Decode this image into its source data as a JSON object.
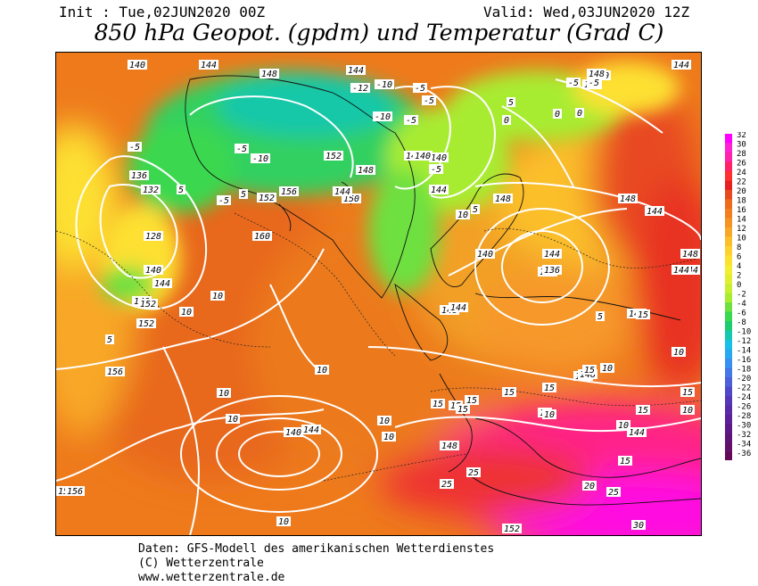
{
  "header": {
    "init": "Init : Tue,02JUN2020 00Z",
    "valid": "Valid: Wed,03JUN2020 12Z",
    "title": "850 hPa Geopot. (gpdm) und Temperatur (Grad C)"
  },
  "legend": {
    "labels": [
      "32",
      "30",
      "28",
      "26",
      "24",
      "22",
      "20",
      "18",
      "16",
      "14",
      "12",
      "10",
      "8",
      "6",
      "4",
      "2",
      "0",
      "-2",
      "-4",
      "-6",
      "-8",
      "-10",
      "-12",
      "-14",
      "-16",
      "-18",
      "-20",
      "-22",
      "-24",
      "-26",
      "-28",
      "-30",
      "-32",
      "-34",
      "-36"
    ],
    "colors": [
      "#ff00ff",
      "#ff22d0",
      "#ff22aa",
      "#ff2266",
      "#ff3030",
      "#e82020",
      "#e84a20",
      "#ee6a1c",
      "#f27e1e",
      "#f59422",
      "#f8a826",
      "#fbbf2a",
      "#fdd22e",
      "#fde030",
      "#f5ee30",
      "#e0f030",
      "#c8f030",
      "#a8ec30",
      "#6ee040",
      "#3ad850",
      "#1ecc70",
      "#16c8b0",
      "#18c0e8",
      "#28a8f0",
      "#3890f0",
      "#4478e8",
      "#4c60d8",
      "#5048c8",
      "#5438b8",
      "#5a2aa8",
      "#5c2098",
      "#5e1888",
      "#601478",
      "#621068",
      "#640858"
    ]
  },
  "map_labels": {
    "geopotential": [
      "140",
      "144",
      "148",
      "144",
      "152",
      "140",
      "144",
      "148",
      "136",
      "132",
      "128",
      "140",
      "144",
      "148",
      "152",
      "156",
      "160",
      "156",
      "152",
      "150",
      "144",
      "148",
      "152",
      "144",
      "140",
      "136",
      "136",
      "140",
      "144",
      "148",
      "144",
      "144",
      "144",
      "140",
      "144",
      "148",
      "144",
      "148",
      "152",
      "156",
      "148",
      "144",
      "148",
      "144",
      "148",
      "152",
      "148",
      "156",
      "144",
      "140",
      "144"
    ],
    "temperature": [
      "-10",
      "-12",
      "-10",
      "-5",
      "-5",
      "-10",
      "-5",
      "-5",
      "-5",
      "-5",
      "-5",
      "0",
      "0",
      "5",
      "5",
      "5",
      "10",
      "10",
      "10",
      "10",
      "10",
      "10",
      "10",
      "10",
      "5",
      "5",
      "10",
      "15",
      "15",
      "15",
      "15",
      "15",
      "15",
      "10",
      "10",
      "10",
      "10",
      "10",
      "15",
      "20",
      "25",
      "25",
      "25",
      "30",
      "15",
      "15",
      "15",
      "15",
      "-5",
      "-5",
      "0",
      "5",
      "10"
    ]
  },
  "footer": {
    "line1": "Daten: GFS-Modell des amerikanischen Wetterdienstes",
    "line2": "(C) Wetterzentrale",
    "line3": "www.wetterzentrale.de"
  }
}
